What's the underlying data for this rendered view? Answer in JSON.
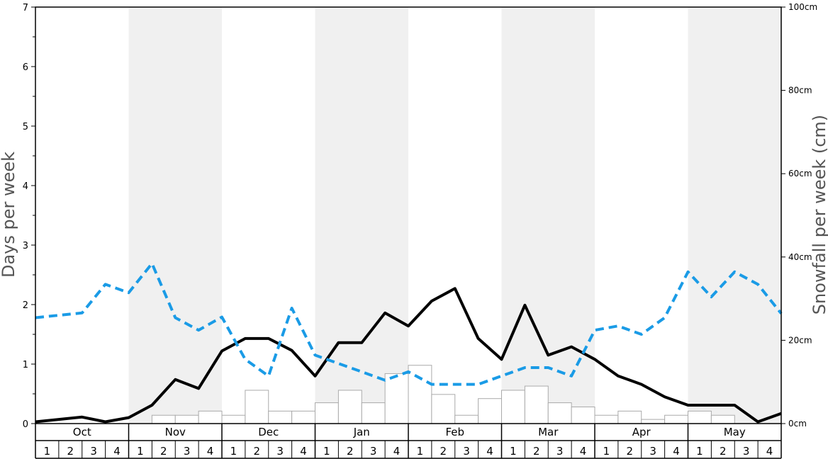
{
  "chart_data": {
    "type": "bar+line",
    "title": "",
    "ylabel_left": "Days per week",
    "ylabel_right": "Snowfall per week (cm)",
    "ylim_left": [
      0,
      7
    ],
    "ylim_right": [
      0,
      100
    ],
    "left_ticks": [
      "0",
      "1",
      "2",
      "3",
      "4",
      "5",
      "6",
      "7"
    ],
    "right_ticks": [
      "0cm",
      "20cm",
      "40cm",
      "60cm",
      "80cm",
      "100cm"
    ],
    "months": [
      "Oct",
      "Nov",
      "Dec",
      "Jan",
      "Feb",
      "Mar",
      "Apr",
      "May"
    ],
    "weeks": [
      "1",
      "2",
      "3",
      "4"
    ],
    "series": [
      {
        "kind": "bar",
        "axis": "right",
        "values": [
          0,
          0,
          0,
          0,
          0,
          2,
          2,
          3,
          2,
          8,
          3,
          3,
          5,
          8,
          5,
          12,
          14,
          7,
          2,
          6,
          8,
          9,
          5,
          4,
          2,
          3,
          1,
          2,
          3,
          2,
          0,
          0
        ]
      },
      {
        "kind": "line",
        "axis": "left",
        "style": "solid",
        "color": "#000000",
        "values": [
          0.03,
          0.07,
          0.11,
          0.03,
          0.1,
          0.31,
          0.74,
          0.59,
          1.22,
          1.43,
          1.43,
          1.23,
          0.8,
          1.36,
          1.36,
          1.86,
          1.64,
          2.06,
          2.27,
          1.43,
          1.08,
          1.99,
          1.15,
          1.29,
          1.08,
          0.8,
          0.66,
          0.45,
          0.31,
          0.31,
          0.31,
          0.03,
          0.17
        ]
      },
      {
        "kind": "line",
        "axis": "left",
        "style": "dashed",
        "color": "#1a9be6",
        "values": [
          1.78,
          1.82,
          1.86,
          2.34,
          2.2,
          2.69,
          1.78,
          1.57,
          1.79,
          1.08,
          0.8,
          1.94,
          1.15,
          1.01,
          0.87,
          0.73,
          0.87,
          0.66,
          0.66,
          0.66,
          0.8,
          0.94,
          0.94,
          0.8,
          1.57,
          1.64,
          1.5,
          1.78,
          2.55,
          2.13,
          2.55,
          2.34,
          1.85
        ]
      }
    ],
    "grid": false,
    "shaded_months": [
      "Nov",
      "Jan",
      "Mar",
      "May"
    ],
    "colors": {
      "shade": "#f0f0f0",
      "bar_fill": "#ffffff",
      "bar_stroke": "#aaaaaa",
      "solid_line": "#000000",
      "dashed_line": "#1a9be6"
    }
  }
}
